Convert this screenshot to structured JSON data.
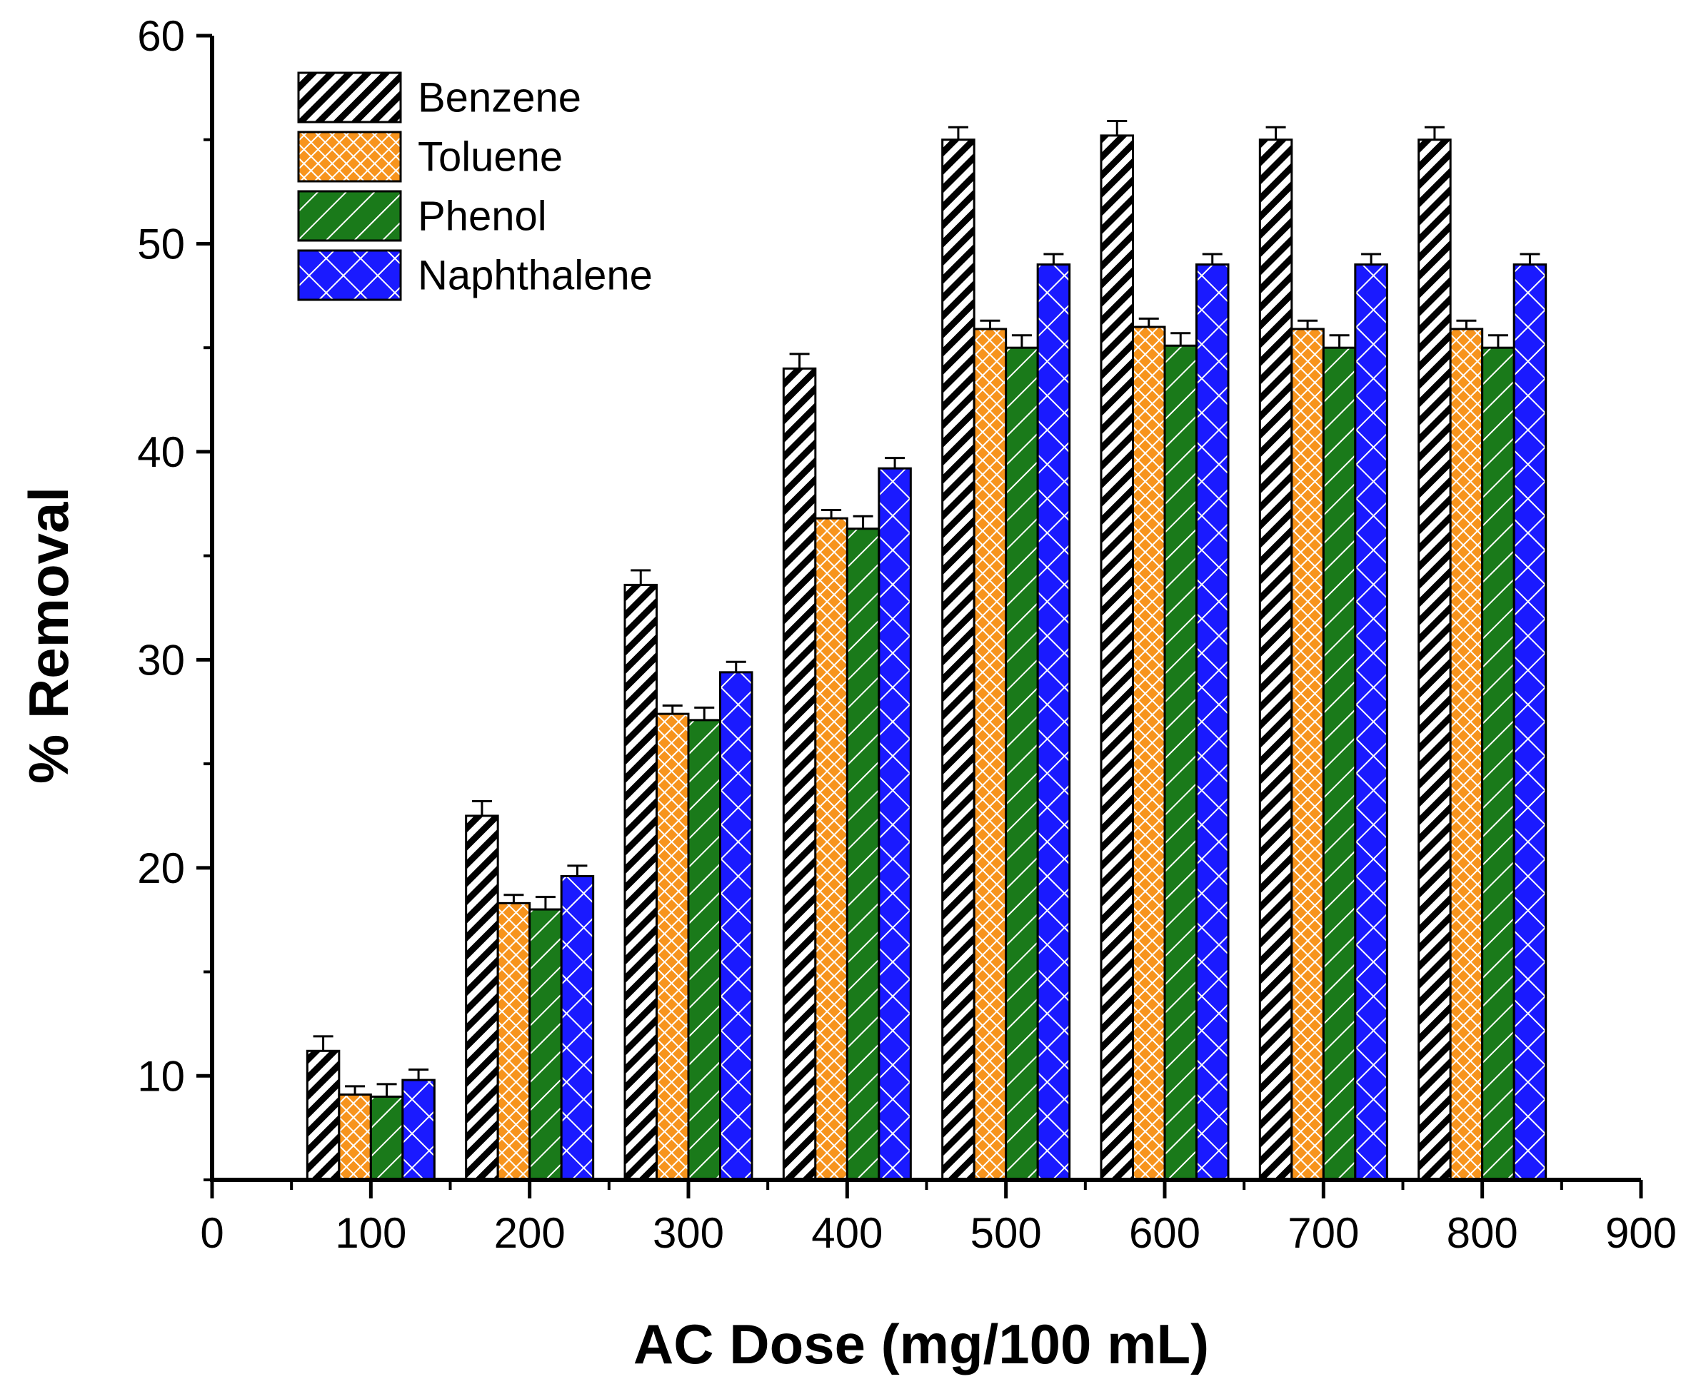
{
  "chart_data": {
    "type": "bar",
    "title": "",
    "xlabel": "AC Dose (mg/100 mL)",
    "ylabel": "% Removal",
    "xlim": [
      0,
      900
    ],
    "ylim": [
      5,
      60
    ],
    "x_ticks": [
      0,
      100,
      200,
      300,
      400,
      500,
      600,
      700,
      800,
      900
    ],
    "y_ticks": [
      10,
      20,
      30,
      40,
      50,
      60
    ],
    "categories": [
      100,
      200,
      300,
      400,
      500,
      600,
      700,
      800
    ],
    "legend_position": "top-left",
    "series": [
      {
        "name": "Benzene",
        "color": "#ffffff",
        "pattern": "diagonal-black",
        "values": [
          11.2,
          22.5,
          33.6,
          44.0,
          55.0,
          55.2,
          55.0,
          55.0
        ],
        "errors": [
          0.7,
          0.7,
          0.7,
          0.7,
          0.6,
          0.7,
          0.6,
          0.6
        ]
      },
      {
        "name": "Toluene",
        "color": "#f7941d",
        "pattern": "crosshatch-orange",
        "values": [
          9.1,
          18.3,
          27.4,
          36.8,
          45.9,
          46.0,
          45.9,
          45.9
        ],
        "errors": [
          0.4,
          0.4,
          0.4,
          0.4,
          0.4,
          0.4,
          0.4,
          0.4
        ]
      },
      {
        "name": "Phenol",
        "color": "#1a7a1a",
        "pattern": "backslash-green",
        "values": [
          9.0,
          18.0,
          27.1,
          36.3,
          45.0,
          45.1,
          45.0,
          45.0
        ],
        "errors": [
          0.6,
          0.6,
          0.6,
          0.6,
          0.6,
          0.6,
          0.6,
          0.6
        ]
      },
      {
        "name": "Naphthalene",
        "color": "#1a1aff",
        "pattern": "crosshatch-blue",
        "values": [
          9.8,
          19.6,
          29.4,
          39.2,
          49.0,
          49.0,
          49.0,
          49.0
        ],
        "errors": [
          0.5,
          0.5,
          0.5,
          0.5,
          0.5,
          0.5,
          0.5,
          0.5
        ]
      }
    ]
  }
}
